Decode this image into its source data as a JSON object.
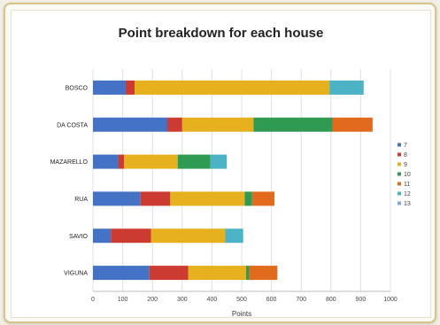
{
  "chart_data": {
    "type": "bar",
    "orientation": "horizontal",
    "stacked": true,
    "title": "Point breakdown for each house",
    "xlabel": "Points",
    "ylabel": "",
    "xlim": [
      0,
      1000
    ],
    "xticks": [
      0,
      100,
      200,
      300,
      400,
      500,
      600,
      700,
      800,
      900,
      1000
    ],
    "grid": true,
    "legend_position": "right",
    "categories": [
      "BOSCO",
      "DA COSTA",
      "MAZARELLO",
      "RUA",
      "SAVIO",
      "VIGUNA"
    ],
    "series": [
      {
        "name": "7",
        "color": "#4472c4",
        "values": [
          110,
          250,
          85,
          160,
          60,
          190
        ]
      },
      {
        "name": "8",
        "color": "#cc3b32",
        "values": [
          30,
          50,
          20,
          100,
          135,
          130
        ]
      },
      {
        "name": "9",
        "color": "#e6b01f",
        "values": [
          655,
          240,
          180,
          250,
          250,
          195
        ]
      },
      {
        "name": "10",
        "color": "#2e9a52",
        "values": [
          0,
          265,
          110,
          25,
          0,
          10
        ]
      },
      {
        "name": "11",
        "color": "#e26a1d",
        "values": [
          0,
          135,
          0,
          75,
          0,
          95
        ]
      },
      {
        "name": "12",
        "color": "#4cb3c6",
        "values": [
          115,
          0,
          55,
          0,
          60,
          0
        ]
      },
      {
        "name": "13",
        "color": "#7fa7dd",
        "values": [
          0,
          0,
          0,
          0,
          0,
          0
        ]
      }
    ]
  }
}
